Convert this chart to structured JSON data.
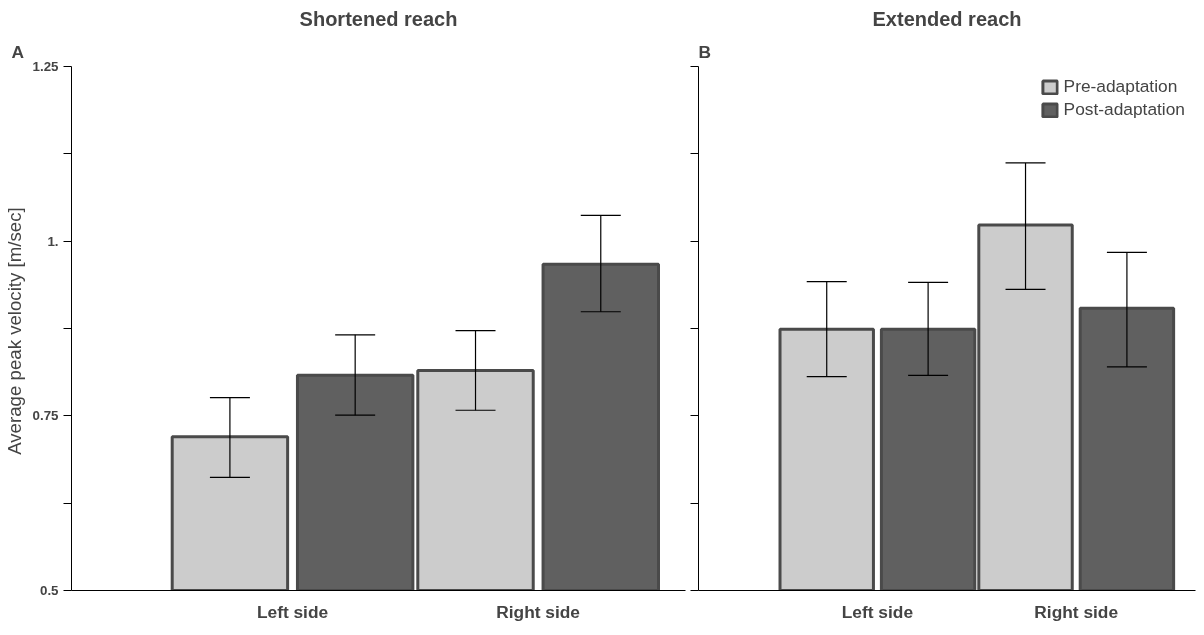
{
  "chart_data": [
    {
      "type": "bar",
      "title": "Shortened reach",
      "annotations": [
        "A"
      ],
      "ylabel": "Average peak velocity  [m/sec]",
      "categories": [
        "Left side",
        "Right side"
      ],
      "series": [
        {
          "color": "#cccccc",
          "values": [
            0.72,
            0.815
          ],
          "errors": [
            [
              0.662,
              0.776
            ],
            [
              0.758,
              0.872
            ]
          ]
        },
        {
          "color": "#606060",
          "values": [
            0.808,
            0.967
          ],
          "errors": [
            [
              0.751,
              0.866
            ],
            [
              0.899,
              1.037
            ]
          ]
        }
      ],
      "ylim": [
        0.5,
        1.25
      ],
      "yticks": [
        0.5,
        {
          "value": 0.625,
          "label": null
        },
        0.75,
        {
          "value": 0.875,
          "label": null
        },
        {
          "value": 1,
          "label": "1."
        },
        {
          "value": 1.125,
          "label": null
        },
        1.25
      ],
      "grid": false,
      "legend": false
    },
    {
      "type": "bar",
      "title": "Extended reach",
      "annotations": [
        "B"
      ],
      "categories": [
        "Left side",
        "Right side"
      ],
      "series": [
        {
          "name": "Pre-adaptation",
          "color": "#cccccc",
          "values": [
            0.874,
            1.023
          ],
          "errors": [
            [
              0.806,
              0.942
            ],
            [
              0.931,
              1.112
            ]
          ]
        },
        {
          "name": "Post-adaptation",
          "color": "#606060",
          "values": [
            0.874,
            0.904
          ],
          "errors": [
            [
              0.808,
              0.941
            ],
            [
              0.82,
              0.984
            ]
          ]
        }
      ],
      "ylim": [
        0.5,
        1.25
      ],
      "yticks": [
        {
          "value": 0.5,
          "label": null
        },
        {
          "value": 0.625,
          "label": null
        },
        {
          "value": 0.75,
          "label": null
        },
        {
          "value": 0.875,
          "label": null
        },
        {
          "value": 1,
          "label": null
        },
        {
          "value": 1.125,
          "label": null
        },
        {
          "value": 1.25,
          "label": null
        }
      ],
      "tick_labels": "x",
      "grid": false,
      "legend": "top right"
    }
  ]
}
